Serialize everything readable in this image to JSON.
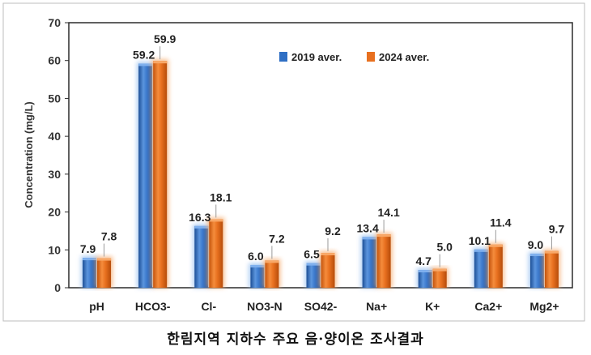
{
  "caption": "한림지역 지하수 주요 음·양이온 조사결과",
  "colors": {
    "series_2019": "#2f6fc4",
    "series_2024": "#e8701f",
    "glow_2019": "#9cc2f0",
    "glow_2024": "#f6b27a",
    "plot_border": "#2b2b2b",
    "outer_border": "#8a8a8a"
  },
  "chart_data": {
    "type": "bar",
    "title": "",
    "xlabel": "",
    "ylabel": "Concentration  (mg/L)",
    "ylim": [
      0,
      70
    ],
    "yticks": [
      0,
      10,
      20,
      30,
      40,
      50,
      60,
      70
    ],
    "grid": false,
    "legend_position": "top-right",
    "categories": [
      "pH",
      "HCO3-",
      "Cl-",
      "NO3-N",
      "SO42-",
      "Na+",
      "K+",
      "Ca2+",
      "Mg2+"
    ],
    "series": [
      {
        "name": "2019 aver.",
        "values": [
          7.9,
          59.2,
          16.3,
          6.0,
          6.5,
          13.4,
          4.7,
          10.1,
          9.0
        ],
        "labels": [
          "7.9",
          "59.2",
          "16.3",
          "6.0",
          "6.5",
          "13.4",
          "4.7",
          "10.1",
          "9.0"
        ]
      },
      {
        "name": "2024 aver.",
        "values": [
          7.8,
          59.9,
          18.1,
          7.2,
          9.2,
          14.1,
          5.0,
          11.4,
          9.7
        ],
        "labels": [
          "7.8",
          "59.9",
          "18.1",
          "7.2",
          "9.2",
          "14.1",
          "5.0",
          "11.4",
          "9.7"
        ]
      }
    ]
  }
}
